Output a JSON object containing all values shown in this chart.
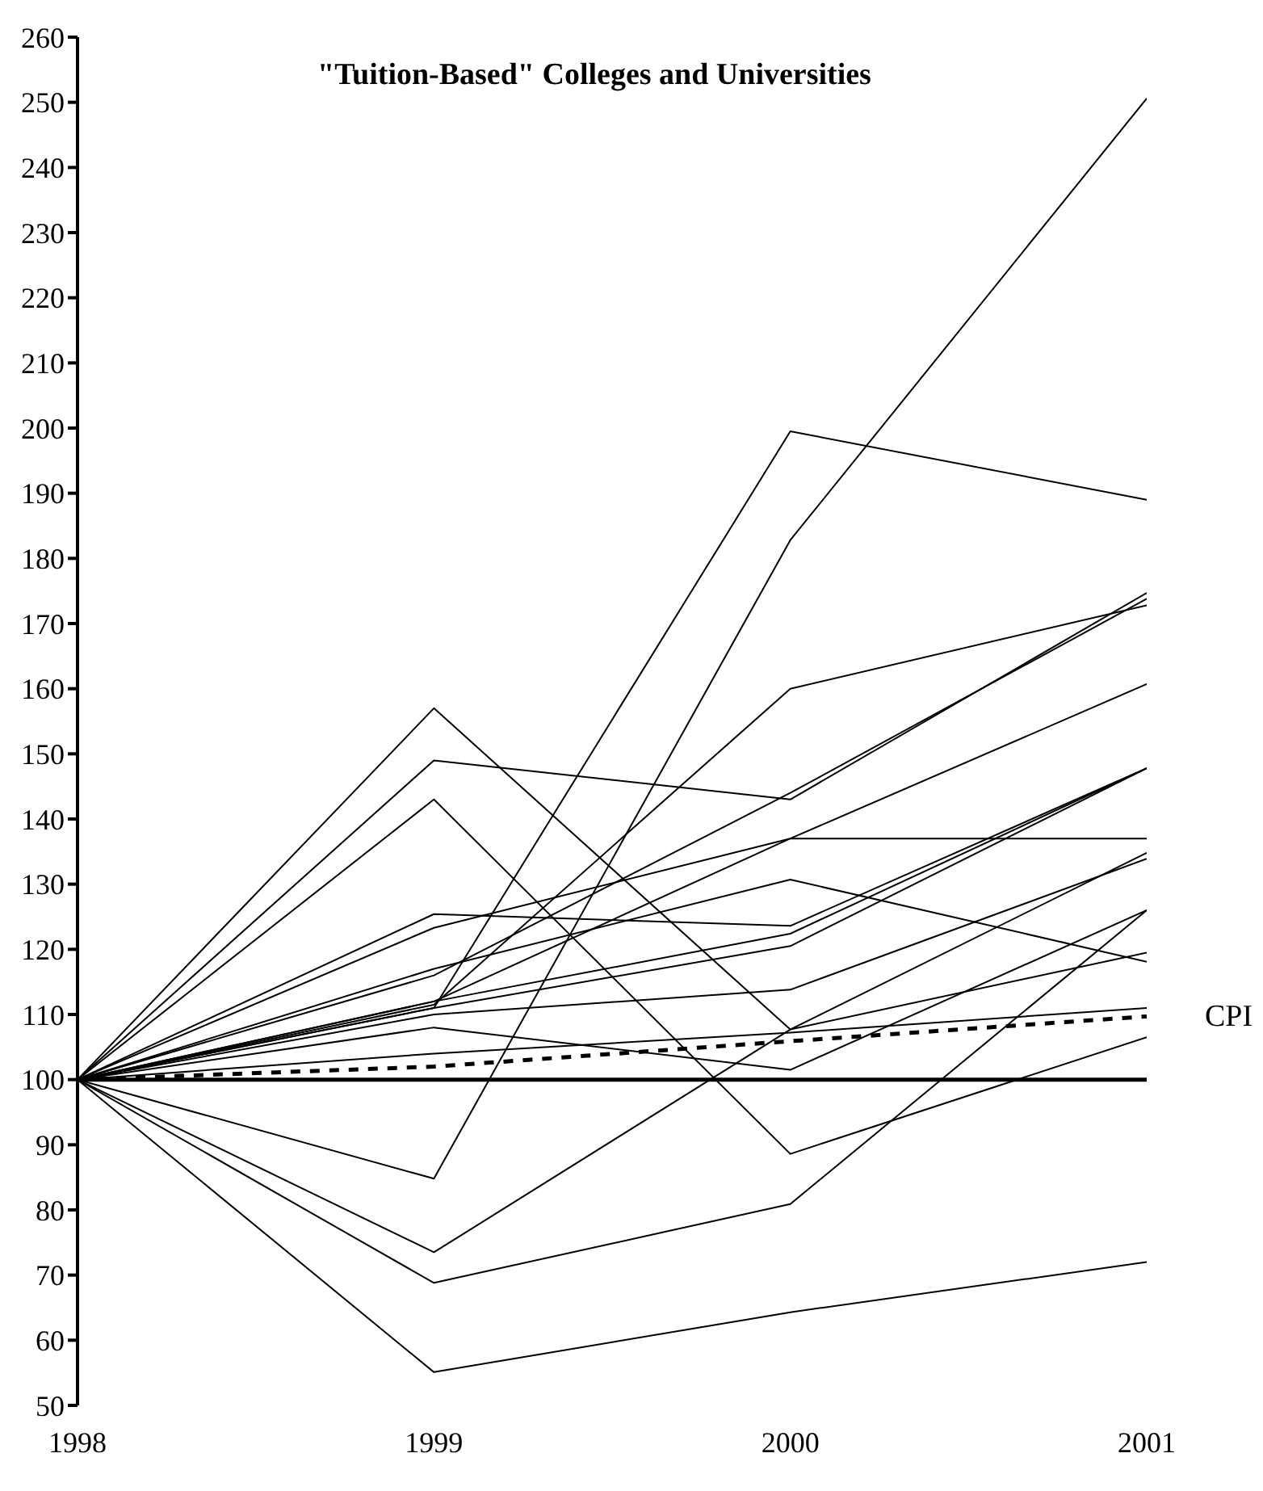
{
  "chart_data": {
    "type": "line",
    "title": "\"Tuition-Based\" Colleges and Universities",
    "x": [
      1998,
      1999,
      2000,
      2001
    ],
    "xlim": [
      1998,
      2001
    ],
    "xticks": [
      1998,
      1999,
      2000,
      2001
    ],
    "ylim": [
      50,
      260
    ],
    "yticks": [
      50,
      60,
      70,
      80,
      90,
      100,
      110,
      120,
      130,
      140,
      150,
      160,
      170,
      180,
      190,
      200,
      210,
      220,
      230,
      240,
      250,
      260
    ],
    "marker": "none",
    "line_style": "solid",
    "ref_lines": [
      {
        "axis": "y",
        "value": 100,
        "color": "#000000"
      }
    ],
    "series": [
      {
        "color": "#000000",
        "values": [
          100,
          111,
          199.5,
          189
        ]
      },
      {
        "color": "#000000",
        "values": [
          100,
          84.8,
          182.8,
          250.6
        ]
      },
      {
        "color": "#000000",
        "values": [
          100,
          111.5,
          160,
          172.8
        ]
      },
      {
        "color": "#000000",
        "values": [
          100,
          149,
          143,
          174.7
        ]
      },
      {
        "color": "#000000",
        "values": [
          100,
          123.3,
          137,
          137
        ]
      },
      {
        "color": "#000000",
        "values": [
          100,
          157,
          107.7,
          119.5
        ]
      },
      {
        "color": "#000000",
        "values": [
          100,
          143,
          88.6,
          106.5
        ]
      },
      {
        "color": "#000000",
        "values": [
          100,
          73.5,
          107.7,
          134.8
        ]
      },
      {
        "color": "#000000",
        "values": [
          100,
          68.8,
          80.9,
          126
        ]
      },
      {
        "color": "#000000",
        "values": [
          100,
          55.1,
          64.3,
          72
        ]
      },
      {
        "color": "#000000",
        "values": [
          100,
          108,
          101.5,
          126
        ]
      },
      {
        "color": "#000000",
        "values": [
          100,
          104,
          107.2,
          111
        ]
      },
      {
        "color": "#000000",
        "values": [
          100,
          110,
          113.8,
          133.9
        ]
      },
      {
        "color": "#000000",
        "values": [
          100,
          111,
          120.5,
          147.8
        ]
      },
      {
        "color": "#000000",
        "values": [
          100,
          112,
          122.4,
          147.8
        ]
      },
      {
        "color": "#000000",
        "values": [
          100,
          125.4,
          123.6,
          147.8
        ]
      },
      {
        "color": "#000000",
        "values": [
          100,
          117,
          130.7,
          118.1
        ]
      },
      {
        "color": "#000000",
        "values": [
          100,
          116,
          144,
          173.8
        ]
      },
      {
        "color": "#000000",
        "values": [
          100,
          112,
          137,
          160.7
        ]
      },
      {
        "name": "CPI",
        "color": "#000000",
        "line_style": "dashed",
        "values": [
          100,
          102,
          105.9,
          109.7
        ]
      }
    ]
  }
}
